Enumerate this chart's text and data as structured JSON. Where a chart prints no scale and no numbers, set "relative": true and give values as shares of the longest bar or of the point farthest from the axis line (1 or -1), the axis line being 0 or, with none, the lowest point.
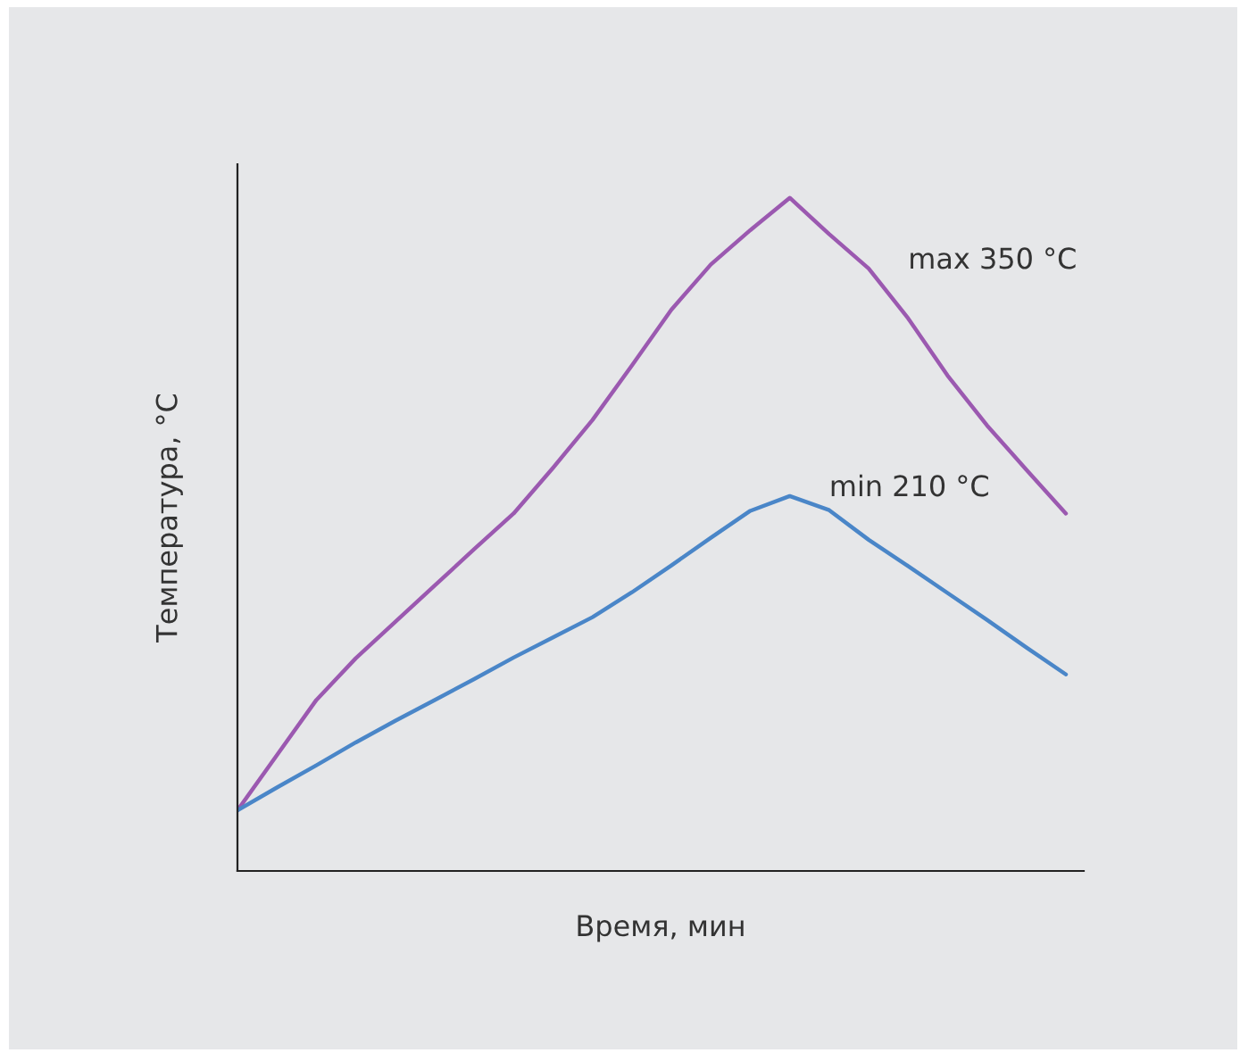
{
  "chart_data": {
    "type": "line",
    "relative": true,
    "xlabel": "Время, мин",
    "ylabel": "Температура, °C",
    "grid": false,
    "legend": false,
    "categories": [
      null,
      null,
      null,
      null,
      null,
      null,
      null,
      null,
      null,
      null,
      null,
      null,
      null,
      null,
      null,
      null,
      null,
      null,
      null,
      null,
      null,
      null
    ],
    "series": [
      {
        "name": "max 350 °C",
        "color": "#9b59b0",
        "values": [
          0.09,
          0.172,
          0.254,
          0.316,
          0.37,
          0.424,
          0.478,
          0.531,
          0.599,
          0.67,
          0.751,
          0.834,
          0.901,
          0.952,
          1.0,
          0.946,
          0.895,
          0.821,
          0.736,
          0.662,
          0.596,
          0.531
        ]
      },
      {
        "name": "min 210 °C",
        "color": "#4a86c8",
        "values": [
          0.09,
          0.124,
          0.157,
          0.191,
          0.223,
          0.254,
          0.285,
          0.317,
          0.347,
          0.377,
          0.414,
          0.454,
          0.495,
          0.535,
          0.557,
          0.536,
          0.492,
          0.453,
          0.413,
          0.373,
          0.332,
          0.292
        ]
      }
    ]
  }
}
